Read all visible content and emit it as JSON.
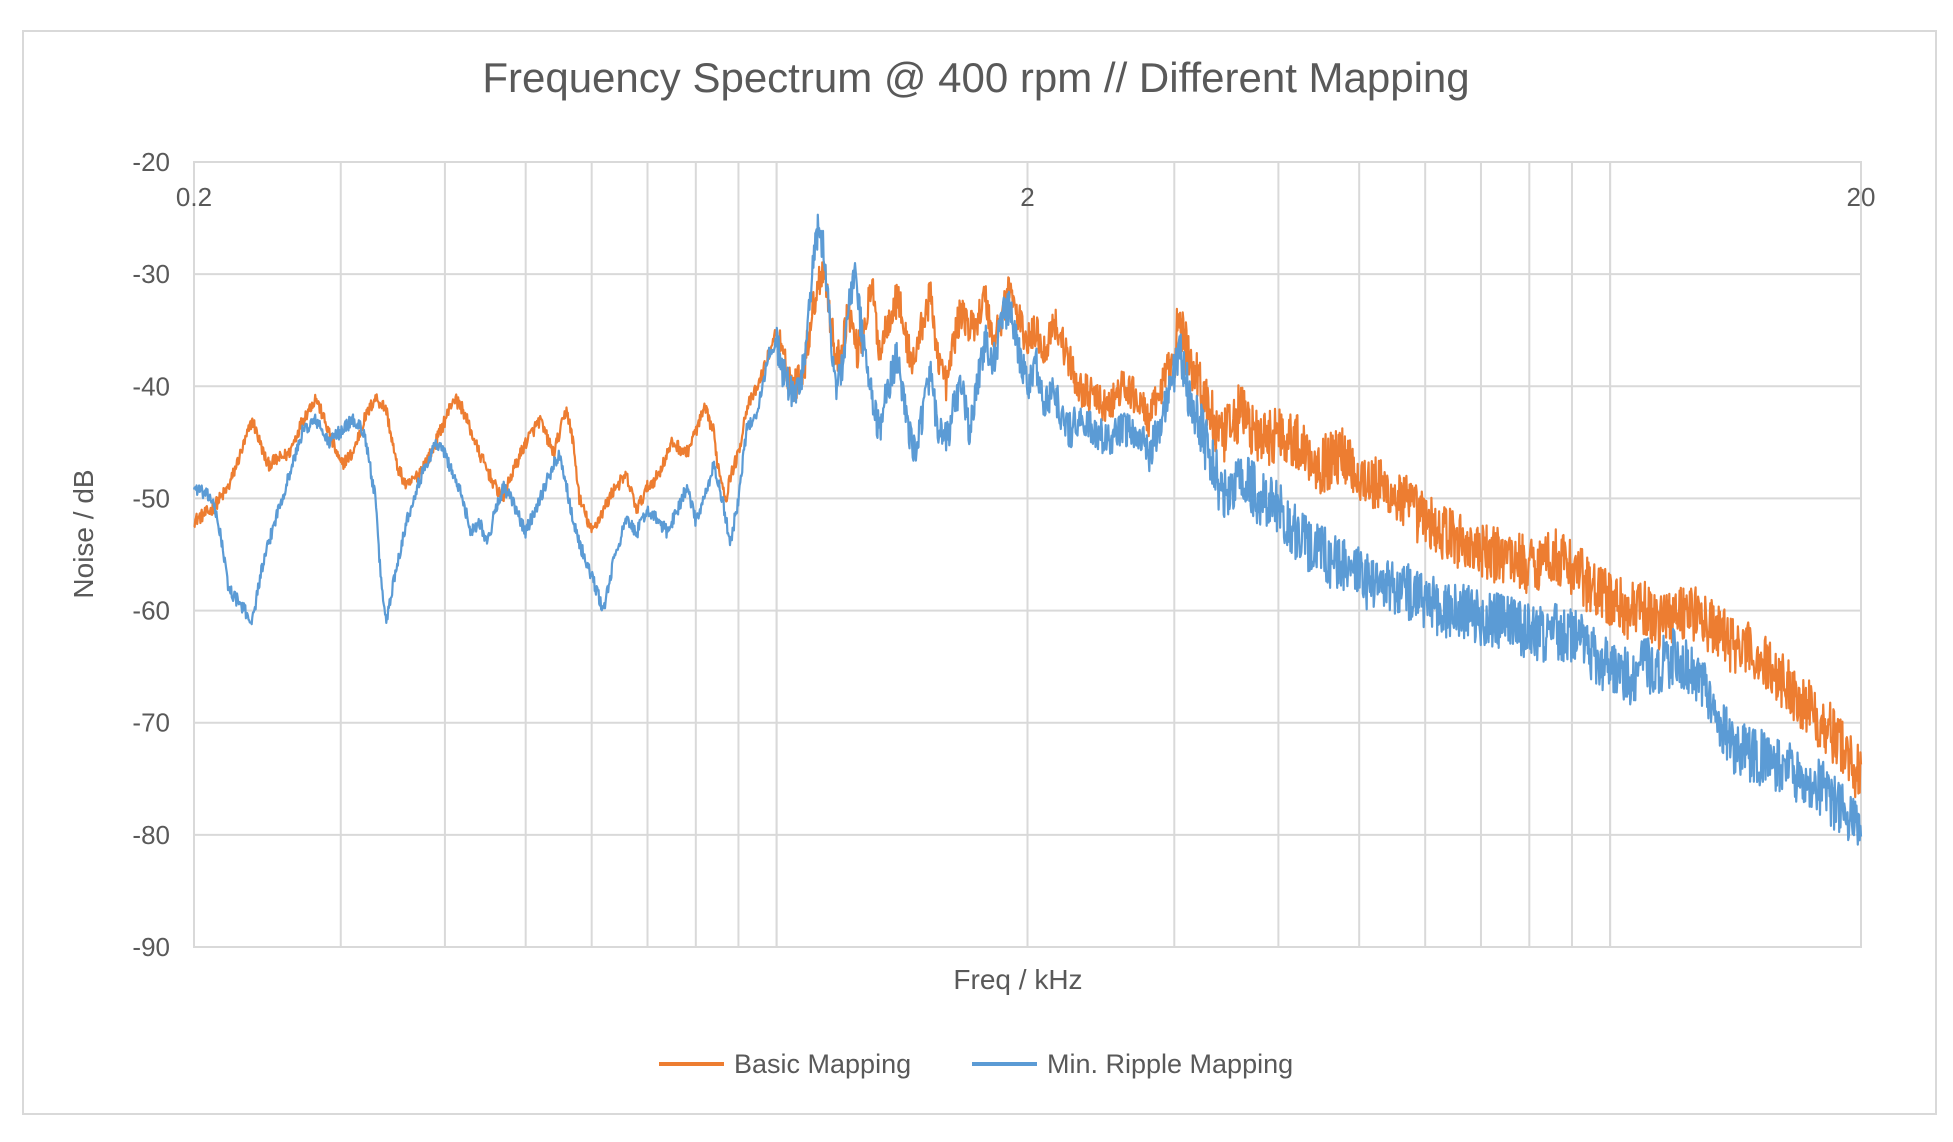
{
  "chart_data": {
    "type": "line",
    "title": "Frequency Spectrum @ 400 rpm // Different Mapping",
    "xlabel": "Freq / kHz",
    "ylabel": "Noise / dB",
    "x_scale": "log",
    "xlim": [
      0.2,
      20
    ],
    "ylim": [
      -90,
      -20
    ],
    "x_ticks": [
      0.2,
      2,
      20
    ],
    "x_tick_labels": [
      "0.2",
      "2",
      "20"
    ],
    "y_ticks": [
      -20,
      -30,
      -40,
      -50,
      -60,
      -70,
      -80,
      -90
    ],
    "y_tick_labels": [
      "-20",
      "-30",
      "-40",
      "-50",
      "-60",
      "-70",
      "-80",
      "-90"
    ],
    "grid": true,
    "legend_position": "bottom",
    "series": [
      {
        "name": "Basic Mapping",
        "color": "#ed7d31",
        "points": [
          [
            0.2,
            -52
          ],
          [
            0.21,
            -51
          ],
          [
            0.22,
            -49
          ],
          [
            0.23,
            -45
          ],
          [
            0.235,
            -43
          ],
          [
            0.245,
            -47
          ],
          [
            0.26,
            -46
          ],
          [
            0.27,
            -43
          ],
          [
            0.28,
            -41
          ],
          [
            0.29,
            -44
          ],
          [
            0.3,
            -47
          ],
          [
            0.31,
            -46
          ],
          [
            0.32,
            -43
          ],
          [
            0.33,
            -41
          ],
          [
            0.34,
            -42
          ],
          [
            0.35,
            -47
          ],
          [
            0.36,
            -49
          ],
          [
            0.37,
            -48
          ],
          [
            0.385,
            -46
          ],
          [
            0.4,
            -43
          ],
          [
            0.41,
            -41
          ],
          [
            0.42,
            -42
          ],
          [
            0.44,
            -46
          ],
          [
            0.46,
            -49
          ],
          [
            0.47,
            -50
          ],
          [
            0.48,
            -48
          ],
          [
            0.5,
            -45
          ],
          [
            0.52,
            -43
          ],
          [
            0.54,
            -46
          ],
          [
            0.55,
            -44
          ],
          [
            0.56,
            -42
          ],
          [
            0.57,
            -45
          ],
          [
            0.58,
            -50
          ],
          [
            0.6,
            -53
          ],
          [
            0.62,
            -51
          ],
          [
            0.64,
            -49
          ],
          [
            0.66,
            -48
          ],
          [
            0.68,
            -51
          ],
          [
            0.7,
            -49
          ],
          [
            0.72,
            -48
          ],
          [
            0.75,
            -45
          ],
          [
            0.78,
            -46
          ],
          [
            0.8,
            -44
          ],
          [
            0.82,
            -42
          ],
          [
            0.84,
            -44
          ],
          [
            0.85,
            -47
          ],
          [
            0.87,
            -50
          ],
          [
            0.88,
            -48
          ],
          [
            0.9,
            -46
          ],
          [
            0.92,
            -42
          ],
          [
            0.95,
            -40
          ],
          [
            0.98,
            -37
          ],
          [
            1.0,
            -35
          ],
          [
            1.02,
            -38
          ],
          [
            1.05,
            -40
          ],
          [
            1.08,
            -38
          ],
          [
            1.1,
            -34
          ],
          [
            1.12,
            -31
          ],
          [
            1.14,
            -29
          ],
          [
            1.16,
            -34
          ],
          [
            1.18,
            -38
          ],
          [
            1.2,
            -36
          ],
          [
            1.22,
            -33
          ],
          [
            1.25,
            -37
          ],
          [
            1.28,
            -34
          ],
          [
            1.3,
            -31
          ],
          [
            1.33,
            -37
          ],
          [
            1.36,
            -34
          ],
          [
            1.4,
            -32
          ],
          [
            1.43,
            -36
          ],
          [
            1.46,
            -38
          ],
          [
            1.5,
            -34
          ],
          [
            1.53,
            -32
          ],
          [
            1.56,
            -37
          ],
          [
            1.6,
            -40
          ],
          [
            1.63,
            -36
          ],
          [
            1.67,
            -33
          ],
          [
            1.7,
            -35
          ],
          [
            1.74,
            -34
          ],
          [
            1.78,
            -32
          ],
          [
            1.82,
            -36
          ],
          [
            1.86,
            -34
          ],
          [
            1.9,
            -31
          ],
          [
            1.95,
            -34
          ],
          [
            2.0,
            -36
          ],
          [
            2.05,
            -35
          ],
          [
            2.1,
            -37
          ],
          [
            2.15,
            -34
          ],
          [
            2.2,
            -36
          ],
          [
            2.25,
            -38
          ],
          [
            2.3,
            -40
          ],
          [
            2.4,
            -41
          ],
          [
            2.5,
            -42
          ],
          [
            2.6,
            -40
          ],
          [
            2.7,
            -41
          ],
          [
            2.8,
            -43
          ],
          [
            2.9,
            -40
          ],
          [
            3.0,
            -37
          ],
          [
            3.05,
            -34
          ],
          [
            3.1,
            -37
          ],
          [
            3.2,
            -39
          ],
          [
            3.3,
            -42
          ],
          [
            3.4,
            -45
          ],
          [
            3.5,
            -44
          ],
          [
            3.6,
            -42
          ],
          [
            3.8,
            -45
          ],
          [
            4.0,
            -44
          ],
          [
            4.2,
            -45
          ],
          [
            4.5,
            -47
          ],
          [
            4.8,
            -46
          ],
          [
            5.0,
            -48
          ],
          [
            5.3,
            -49
          ],
          [
            5.6,
            -50
          ],
          [
            6.0,
            -52
          ],
          [
            6.3,
            -53
          ],
          [
            6.7,
            -54
          ],
          [
            7.0,
            -55
          ],
          [
            7.5,
            -55
          ],
          [
            8.0,
            -56
          ],
          [
            8.5,
            -55
          ],
          [
            9.0,
            -56
          ],
          [
            9.5,
            -58
          ],
          [
            10.0,
            -59
          ],
          [
            10.5,
            -60
          ],
          [
            11.0,
            -60
          ],
          [
            11.5,
            -61
          ],
          [
            12.0,
            -60
          ],
          [
            12.5,
            -60
          ],
          [
            13.0,
            -61
          ],
          [
            13.5,
            -62
          ],
          [
            14.0,
            -63
          ],
          [
            15.0,
            -64
          ],
          [
            16.0,
            -66
          ],
          [
            17.0,
            -68
          ],
          [
            18.0,
            -70
          ],
          [
            19.0,
            -72
          ],
          [
            20.0,
            -75
          ]
        ]
      },
      {
        "name": "Min. Ripple Mapping",
        "color": "#5b9bd5",
        "points": [
          [
            0.2,
            -49
          ],
          [
            0.21,
            -50
          ],
          [
            0.215,
            -53
          ],
          [
            0.22,
            -58
          ],
          [
            0.23,
            -60
          ],
          [
            0.235,
            -61
          ],
          [
            0.24,
            -57
          ],
          [
            0.25,
            -52
          ],
          [
            0.26,
            -48
          ],
          [
            0.27,
            -44
          ],
          [
            0.28,
            -43
          ],
          [
            0.29,
            -45
          ],
          [
            0.3,
            -44
          ],
          [
            0.31,
            -43
          ],
          [
            0.32,
            -44
          ],
          [
            0.33,
            -50
          ],
          [
            0.335,
            -57
          ],
          [
            0.34,
            -61
          ],
          [
            0.35,
            -56
          ],
          [
            0.36,
            -52
          ],
          [
            0.37,
            -49
          ],
          [
            0.38,
            -47
          ],
          [
            0.39,
            -45
          ],
          [
            0.4,
            -46
          ],
          [
            0.41,
            -48
          ],
          [
            0.42,
            -50
          ],
          [
            0.43,
            -53
          ],
          [
            0.44,
            -52
          ],
          [
            0.45,
            -54
          ],
          [
            0.46,
            -51
          ],
          [
            0.47,
            -49
          ],
          [
            0.48,
            -50
          ],
          [
            0.5,
            -53
          ],
          [
            0.52,
            -50
          ],
          [
            0.54,
            -47
          ],
          [
            0.55,
            -46
          ],
          [
            0.56,
            -49
          ],
          [
            0.57,
            -52
          ],
          [
            0.58,
            -54
          ],
          [
            0.6,
            -57
          ],
          [
            0.62,
            -60
          ],
          [
            0.64,
            -55
          ],
          [
            0.66,
            -52
          ],
          [
            0.68,
            -53
          ],
          [
            0.7,
            -51
          ],
          [
            0.72,
            -52
          ],
          [
            0.74,
            -53
          ],
          [
            0.76,
            -51
          ],
          [
            0.78,
            -49
          ],
          [
            0.8,
            -52
          ],
          [
            0.82,
            -50
          ],
          [
            0.84,
            -47
          ],
          [
            0.86,
            -50
          ],
          [
            0.88,
            -54
          ],
          [
            0.9,
            -50
          ],
          [
            0.92,
            -44
          ],
          [
            0.95,
            -42
          ],
          [
            0.98,
            -37
          ],
          [
            1.0,
            -36
          ],
          [
            1.02,
            -39
          ],
          [
            1.05,
            -41
          ],
          [
            1.08,
            -38
          ],
          [
            1.1,
            -31
          ],
          [
            1.12,
            -26
          ],
          [
            1.14,
            -28
          ],
          [
            1.16,
            -35
          ],
          [
            1.18,
            -40
          ],
          [
            1.2,
            -38
          ],
          [
            1.22,
            -33
          ],
          [
            1.24,
            -30
          ],
          [
            1.27,
            -36
          ],
          [
            1.3,
            -41
          ],
          [
            1.33,
            -44
          ],
          [
            1.36,
            -40
          ],
          [
            1.4,
            -37
          ],
          [
            1.43,
            -43
          ],
          [
            1.46,
            -46
          ],
          [
            1.5,
            -42
          ],
          [
            1.53,
            -39
          ],
          [
            1.56,
            -44
          ],
          [
            1.6,
            -45
          ],
          [
            1.63,
            -42
          ],
          [
            1.67,
            -40
          ],
          [
            1.7,
            -44
          ],
          [
            1.74,
            -40
          ],
          [
            1.78,
            -36
          ],
          [
            1.82,
            -38
          ],
          [
            1.86,
            -34
          ],
          [
            1.9,
            -33
          ],
          [
            1.95,
            -37
          ],
          [
            2.0,
            -40
          ],
          [
            2.05,
            -38
          ],
          [
            2.1,
            -42
          ],
          [
            2.15,
            -40
          ],
          [
            2.2,
            -43
          ],
          [
            2.25,
            -44
          ],
          [
            2.3,
            -43
          ],
          [
            2.4,
            -44
          ],
          [
            2.5,
            -45
          ],
          [
            2.6,
            -44
          ],
          [
            2.7,
            -44
          ],
          [
            2.8,
            -46
          ],
          [
            2.9,
            -43
          ],
          [
            3.0,
            -38
          ],
          [
            3.05,
            -36
          ],
          [
            3.1,
            -40
          ],
          [
            3.2,
            -43
          ],
          [
            3.3,
            -46
          ],
          [
            3.4,
            -49
          ],
          [
            3.5,
            -50
          ],
          [
            3.6,
            -48
          ],
          [
            3.8,
            -50
          ],
          [
            4.0,
            -51
          ],
          [
            4.2,
            -53
          ],
          [
            4.5,
            -55
          ],
          [
            4.8,
            -56
          ],
          [
            5.0,
            -57
          ],
          [
            5.3,
            -58
          ],
          [
            5.6,
            -58
          ],
          [
            6.0,
            -59
          ],
          [
            6.3,
            -60
          ],
          [
            6.7,
            -60
          ],
          [
            7.0,
            -61
          ],
          [
            7.5,
            -61
          ],
          [
            8.0,
            -62
          ],
          [
            8.5,
            -62
          ],
          [
            9.0,
            -62
          ],
          [
            9.5,
            -64
          ],
          [
            10.0,
            -65
          ],
          [
            10.5,
            -66
          ],
          [
            11.0,
            -65
          ],
          [
            11.5,
            -65
          ],
          [
            12.0,
            -64
          ],
          [
            12.5,
            -65
          ],
          [
            13.0,
            -67
          ],
          [
            13.5,
            -70
          ],
          [
            14.0,
            -72
          ],
          [
            15.0,
            -73
          ],
          [
            16.0,
            -74
          ],
          [
            17.0,
            -75
          ],
          [
            18.0,
            -76
          ],
          [
            19.0,
            -78
          ],
          [
            20.0,
            -80
          ]
        ]
      }
    ]
  }
}
